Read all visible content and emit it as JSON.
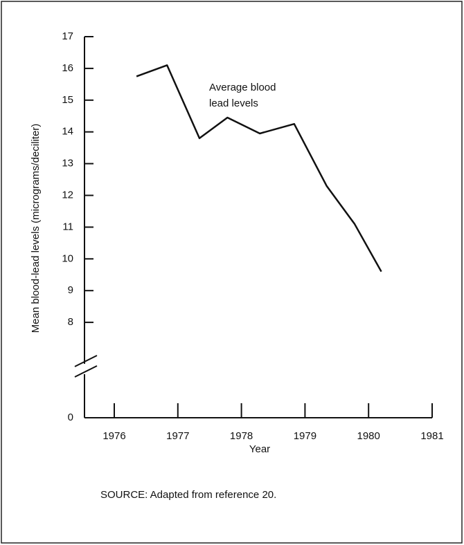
{
  "chart_data": {
    "type": "line",
    "x": [
      1976.35,
      1976.83,
      1977.34,
      1977.78,
      1978.29,
      1978.83,
      1979.34,
      1979.78,
      1980.2
    ],
    "values": [
      15.75,
      16.1,
      13.8,
      14.45,
      13.95,
      14.25,
      12.3,
      11.1,
      9.6
    ],
    "color": "#111111",
    "xlim": [
      1975.55,
      1981.0
    ],
    "xticks": [
      1976,
      1977,
      1978,
      1979,
      1980,
      1981
    ],
    "ylim": [
      0,
      17
    ],
    "yticks": [
      0,
      8,
      9,
      10,
      11,
      12,
      13,
      14,
      15,
      16,
      17
    ],
    "axis_break": [
      0,
      7
    ],
    "xlabel": "Year",
    "ylabel": "Mean blood-lead levels (micrograms/deciliter)",
    "annotation": [
      "Average blood",
      "lead levels"
    ],
    "source": "SOURCE:  Adapted from reference 20."
  }
}
